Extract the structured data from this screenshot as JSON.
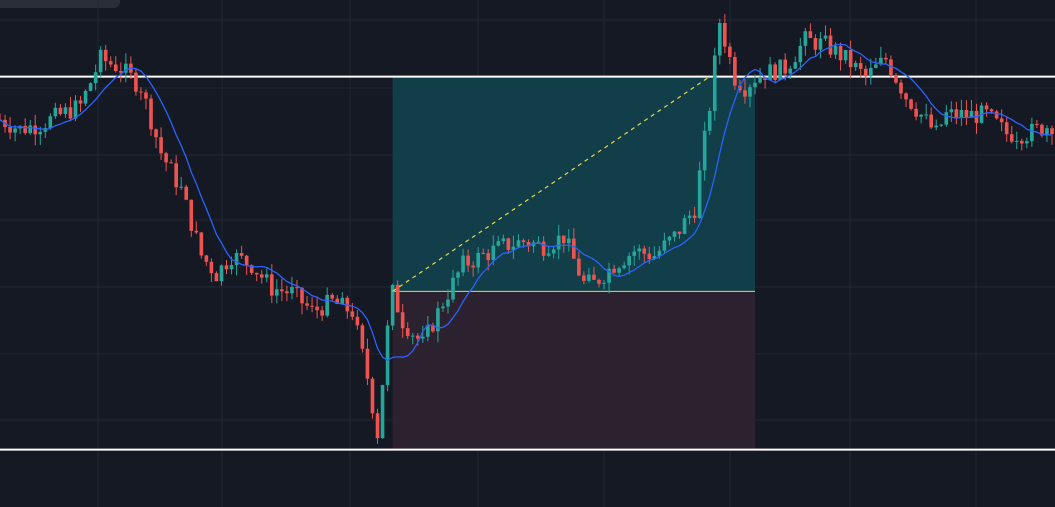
{
  "theme": {
    "background": "#151924",
    "grid": "#232735",
    "bull": "#26a69a",
    "bear": "#ef5350",
    "ma": "#2962ff",
    "hline": "#ffffff",
    "entry": "#e6d84a",
    "profit_zone": "#123e49",
    "loss_zone": "#2c222f"
  },
  "chart_data": {
    "type": "candlestick",
    "title": "",
    "xlabel": "",
    "ylabel": "",
    "grid": true,
    "indicators": [
      "moving-average"
    ],
    "ylim": [
      0,
      100
    ],
    "candles_count": 210,
    "horizontal_levels": [
      86.2,
      6.5
    ],
    "position": {
      "type": "long",
      "start_index": 78,
      "end_index": 150,
      "entry": 40.3,
      "target": 86.2,
      "stop": 6.5
    },
    "trend_line": {
      "from_index": 78,
      "from": 40.3,
      "to_index": 141,
      "to": 86.2
    },
    "price_path": [
      [
        0,
        77
      ],
      [
        4,
        75
      ],
      [
        8,
        76
      ],
      [
        12,
        78
      ],
      [
        16,
        80
      ],
      [
        20,
        90
      ],
      [
        24,
        88
      ],
      [
        28,
        84
      ],
      [
        32,
        70
      ],
      [
        36,
        62
      ],
      [
        40,
        48
      ],
      [
        43,
        44
      ],
      [
        46,
        48
      ],
      [
        50,
        46
      ],
      [
        54,
        41
      ],
      [
        58,
        40
      ],
      [
        62,
        36
      ],
      [
        66,
        38
      ],
      [
        70,
        36
      ],
      [
        73,
        22
      ],
      [
        75,
        10
      ],
      [
        77,
        32
      ],
      [
        78,
        40
      ],
      [
        80,
        34
      ],
      [
        84,
        29
      ],
      [
        88,
        38
      ],
      [
        92,
        46
      ],
      [
        96,
        48
      ],
      [
        100,
        50
      ],
      [
        104,
        51
      ],
      [
        108,
        50
      ],
      [
        112,
        52
      ],
      [
        116,
        42
      ],
      [
        118,
        42
      ],
      [
        122,
        46
      ],
      [
        126,
        49
      ],
      [
        130,
        48
      ],
      [
        134,
        52
      ],
      [
        138,
        58
      ],
      [
        141,
        80
      ],
      [
        143,
        98
      ],
      [
        146,
        86
      ],
      [
        148,
        84
      ],
      [
        150,
        86
      ],
      [
        152,
        87
      ],
      [
        156,
        88
      ],
      [
        160,
        94
      ],
      [
        164,
        93
      ],
      [
        168,
        90
      ],
      [
        172,
        86
      ],
      [
        176,
        90
      ],
      [
        180,
        82
      ],
      [
        183,
        78
      ],
      [
        186,
        74
      ],
      [
        188,
        78
      ],
      [
        192,
        78
      ],
      [
        196,
        78
      ],
      [
        200,
        74
      ],
      [
        204,
        74
      ],
      [
        209,
        76
      ]
    ]
  }
}
